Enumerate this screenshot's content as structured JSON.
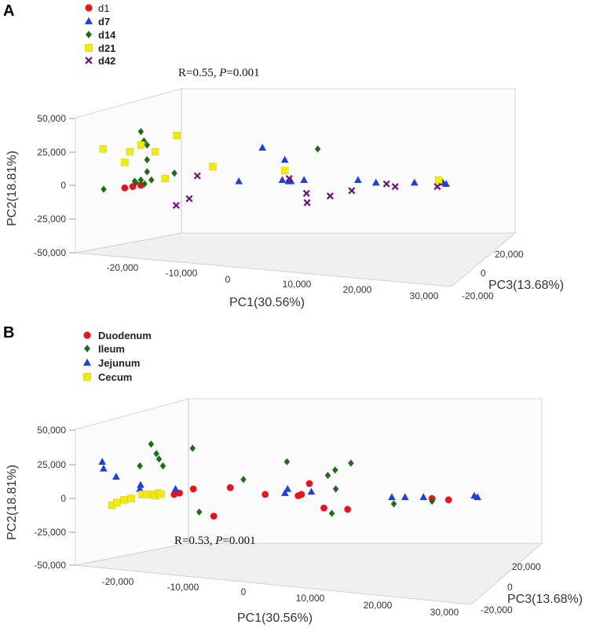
{
  "chart_data": [
    {
      "type": "scatter",
      "panel": "A",
      "annotation_prefix": "R=0.55, ",
      "annotation_p": "P",
      "annotation_suffix": "=0.001",
      "xlabel": "PC1(30.56%)",
      "ylabel": "PC2(18.81%)",
      "zlabel": "PC3(13.68%)",
      "xticks": [
        "-20,000",
        "-10,000",
        "0",
        "10,000",
        "20,000",
        "30,000"
      ],
      "yticks": [
        "50,000",
        "25,000",
        "0",
        "-25,000",
        "-50,000"
      ],
      "zticks": [
        "20,000",
        "0",
        "-20,000"
      ],
      "series": [
        {
          "name": "d1",
          "marker": "circle",
          "color": "#e8141b",
          "points": [
            [
              -16600,
              -2000,
              -9000
            ],
            [
              -15300,
              -1000,
              -9000
            ],
            [
              -14000,
              0,
              -9000
            ]
          ]
        },
        {
          "name": "d7",
          "marker": "triangle",
          "color": "#1f3fd6",
          "points": [
            [
              5600,
              28000,
              12000
            ],
            [
              1800,
              3000,
              0
            ],
            [
              9200,
              19000,
              9000
            ],
            [
              8800,
              4000,
              3000
            ],
            [
              9800,
              3000,
              0
            ],
            [
              12300,
              4000,
              0
            ],
            [
              10200,
              3000,
              -3000
            ],
            [
              21000,
              4000,
              -8000
            ],
            [
              23900,
              2000,
              -8000
            ],
            [
              30100,
              2000,
              -15000
            ],
            [
              34700,
              2000,
              -18000
            ],
            [
              35200,
              1000,
              -20000
            ]
          ]
        },
        {
          "name": "d14",
          "marker": "diamond",
          "color": "#1f6b1a",
          "points": [
            [
              -20000,
              -3000,
              -10000
            ],
            [
              -14000,
              40000,
              -10000
            ],
            [
              -13500,
              33000,
              -10000
            ],
            [
              -13000,
              30000,
              -10000
            ],
            [
              -13000,
              19000,
              -10000
            ],
            [
              -13000,
              10000,
              -10000
            ],
            [
              -14000,
              4000,
              -10000
            ],
            [
              -12300,
              4000,
              -10000
            ],
            [
              -15000,
              3000,
              -10000
            ],
            [
              -14800,
              2000,
              -10000
            ],
            [
              -13400,
              1000,
              -10000
            ],
            [
              -8600,
              9000,
              -10000
            ],
            [
              14500,
              27000,
              -8000
            ]
          ]
        },
        {
          "name": "d21",
          "marker": "square",
          "color": "#f2ea12",
          "points": [
            [
              -20100,
              27000,
              -10000
            ],
            [
              -16600,
              17000,
              -10000
            ],
            [
              -15800,
              25000,
              -10000
            ],
            [
              -14000,
              30000,
              -10000
            ],
            [
              -11700,
              25000,
              -10000
            ],
            [
              -10100,
              5000,
              -10000
            ],
            [
              -8200,
              37000,
              -10000
            ],
            [
              -2400,
              14000,
              -10000
            ],
            [
              9200,
              11000,
              -10000
            ],
            [
              34000,
              4000,
              -22000
            ]
          ]
        },
        {
          "name": "d42",
          "marker": "cross",
          "color": "#6b1273",
          "points": [
            [
              -8300,
              -15000,
              -10000
            ],
            [
              -6200,
              -10000,
              -10000
            ],
            [
              -4900,
              7000,
              -10000
            ],
            [
              9900,
              5000,
              -8000
            ],
            [
              12700,
              -6000,
              -10000
            ],
            [
              12800,
              -13000,
              -10000
            ],
            [
              16500,
              -8000,
              -12000
            ],
            [
              20000,
              -4000,
              -11000
            ],
            [
              25600,
              1000,
              -14000
            ],
            [
              27000,
              -1000,
              -15000
            ],
            [
              33800,
              -1000,
              -20000
            ]
          ]
        }
      ]
    },
    {
      "type": "scatter",
      "panel": "B",
      "annotation_prefix": "R=0.53, ",
      "annotation_p": "P",
      "annotation_suffix": "=0.001",
      "xlabel": "PC1(30.56%)",
      "ylabel": "PC2(18.81%)",
      "zlabel": "PC3(13.68%)",
      "xticks": [
        "-20,000",
        "-10,000",
        "0",
        "10,000",
        "20,000",
        "30,000"
      ],
      "yticks": [
        "50,000",
        "25,000",
        "0",
        "-25,000",
        "-50,000"
      ],
      "zticks": [
        "20,000",
        "0",
        "-20,000"
      ],
      "series": [
        {
          "name": "Duodenum",
          "marker": "circle",
          "color": "#e8141b",
          "points": [
            [
              -10500,
              3000,
              -10000
            ],
            [
              -9700,
              4000,
              -10000
            ],
            [
              -7600,
              7000,
              -10000
            ],
            [
              -4500,
              -13000,
              -10000
            ],
            [
              -2000,
              8000,
              -10000
            ],
            [
              3300,
              3000,
              -10000
            ],
            [
              8300,
              2000,
              -10000
            ],
            [
              8800,
              3000,
              -10000
            ],
            [
              10000,
              11000,
              -10000
            ],
            [
              12200,
              -7000,
              -10000
            ],
            [
              15800,
              -8000,
              -10000
            ],
            [
              28600,
              0,
              -15000
            ],
            [
              31100,
              -1000,
              -17000
            ]
          ]
        },
        {
          "name": "Ileum",
          "marker": "diamond",
          "color": "#1f6b1a",
          "points": [
            [
              -14000,
              40000,
              -10000
            ],
            [
              -13200,
              33000,
              -10000
            ],
            [
              -12800,
              29000,
              -10000
            ],
            [
              -12200,
              24000,
              -10000
            ],
            [
              -15700,
              24000,
              -10000
            ],
            [
              -7700,
              37000,
              -10000
            ],
            [
              -6700,
              -10000,
              -10000
            ],
            [
              0,
              14000,
              -8000
            ],
            [
              6600,
              27000,
              -10000
            ],
            [
              13900,
              21000,
              -10000
            ],
            [
              12800,
              17000,
              -10000
            ],
            [
              13400,
              -11000,
              -12000
            ],
            [
              14000,
              7000,
              -10000
            ],
            [
              16300,
              26000,
              -10000
            ],
            [
              22800,
              -4000,
              -12000
            ],
            [
              28600,
              -2000,
              -16000
            ]
          ]
        },
        {
          "name": "Jejunum",
          "marker": "triangle",
          "color": "#1f3fd6",
          "points": [
            [
              -21400,
              27000,
              -10000
            ],
            [
              -21200,
              22000,
              -10000
            ],
            [
              -19300,
              16000,
              -10000
            ],
            [
              -15600,
              10000,
              -10000
            ],
            [
              -15700,
              7000,
              -10000
            ],
            [
              -10300,
              7000,
              -10000
            ],
            [
              6700,
              7000,
              -10000
            ],
            [
              6300,
              4000,
              -10000
            ],
            [
              10300,
              5000,
              -10000
            ],
            [
              22500,
              1000,
              -14000
            ],
            [
              24500,
              1000,
              -14000
            ],
            [
              27300,
              1000,
              -16000
            ],
            [
              35000,
              2000,
              -20000
            ],
            [
              35500,
              1000,
              -20000
            ]
          ]
        },
        {
          "name": "Cecum",
          "marker": "square",
          "color": "#f2ea12",
          "points": [
            [
              -19900,
              -5000,
              -10000
            ],
            [
              -19200,
              -3000,
              -10000
            ],
            [
              -18100,
              -1000,
              -10000
            ],
            [
              -17000,
              0,
              -10000
            ],
            [
              -15400,
              3000,
              -10000
            ],
            [
              -14700,
              3000,
              -10000
            ],
            [
              -13800,
              3000,
              -10000
            ],
            [
              -13400,
              2000,
              -10000
            ],
            [
              -12900,
              4000,
              -10000
            ],
            [
              -12500,
              3000,
              -10000
            ]
          ]
        }
      ]
    }
  ]
}
